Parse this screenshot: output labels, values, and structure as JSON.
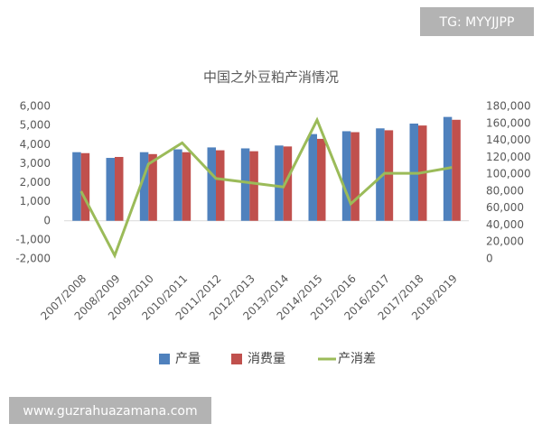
{
  "chart_data": {
    "type": "bar",
    "title": "中国之外豆粕产消情况",
    "categories": [
      "2007/2008",
      "2008/2009",
      "2009/2010",
      "2010/2011",
      "2011/2012",
      "2012/2013",
      "2013/2014",
      "2014/2015",
      "2015/2016",
      "2016/2017",
      "2017/2018",
      "2018/2019"
    ],
    "series": [
      {
        "name": "产量",
        "color": "#4f81bd",
        "type": "bar",
        "values": [
          3600,
          3300,
          3600,
          3750,
          3850,
          3800,
          3950,
          4550,
          4700,
          4850,
          5100,
          5450
        ]
      },
      {
        "name": "消费量",
        "color": "#c0504d",
        "type": "bar",
        "values": [
          3550,
          3350,
          3500,
          3600,
          3700,
          3650,
          3900,
          4300,
          4650,
          4750,
          5000,
          5300
        ]
      },
      {
        "name": "产消差",
        "color": "#9bbb59",
        "type": "line",
        "axis": "y2",
        "values": [
          80000,
          4000,
          112000,
          137000,
          95000,
          90000,
          85000,
          164000,
          65000,
          101000,
          101000,
          108000
        ]
      }
    ],
    "ylim": [
      -2000,
      6000
    ],
    "yticks": [
      {
        "value": -2000,
        "label": "-2,000"
      },
      {
        "value": -1000,
        "label": "-1,000"
      },
      0,
      {
        "value": 1000,
        "label": "1,000"
      },
      {
        "value": 2000,
        "label": "2,000"
      },
      {
        "value": 3000,
        "label": "3,000"
      },
      {
        "value": 4000,
        "label": "4,000"
      },
      {
        "value": 5000,
        "label": "5,000"
      },
      {
        "value": 6000,
        "label": "6,000"
      }
    ],
    "y2lim": [
      0,
      180000
    ],
    "y2ticks": [
      0,
      {
        "value": 20000,
        "label": "20,000"
      },
      {
        "value": 40000,
        "label": "40,000"
      },
      {
        "value": 60000,
        "label": "60,000"
      },
      {
        "value": 80000,
        "label": "80,000"
      },
      {
        "value": 100000,
        "label": "100,000"
      },
      {
        "value": 120000,
        "label": "120,000"
      },
      {
        "value": 140000,
        "label": "140,000"
      },
      {
        "value": 160000,
        "label": "160,000"
      },
      {
        "value": 180000,
        "label": "180,000"
      }
    ],
    "legend": "bottom",
    "grid": false
  },
  "watermarks": [
    "TG: MYYJJPP",
    "www.guzrahuazamana.com"
  ]
}
